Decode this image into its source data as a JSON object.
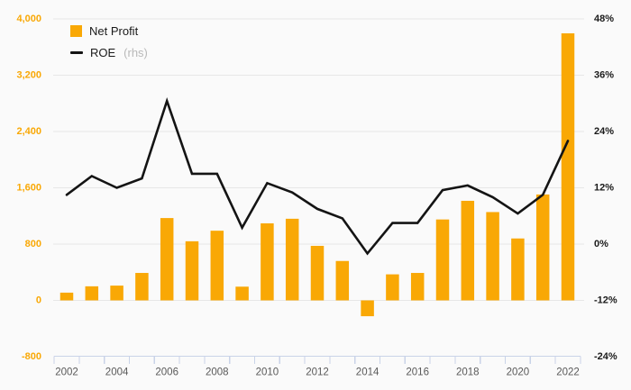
{
  "legend": {
    "net_profit_label": "Net Profit",
    "roe_label": "ROE",
    "roe_suffix": "(rhs)"
  },
  "colors": {
    "bar": "#F9A805",
    "line": "#141414",
    "left_axis_labels": "#F9A805",
    "right_axis_labels": "#1a1a1a",
    "x_axis_labels": "#595959",
    "gridline": "#e7e7e7",
    "axis_line": "#c9d3e8",
    "background": "#fafafa",
    "legend_muted": "#b9b9b9",
    "legend_text": "#1a1a1a"
  },
  "chart_data": {
    "type": "bar",
    "title": "",
    "categories": [
      "2002",
      "2003",
      "2004",
      "2005",
      "2006",
      "2007",
      "2008",
      "2009",
      "2010",
      "2011",
      "2012",
      "2013",
      "2014",
      "2015",
      "2016",
      "2017",
      "2018",
      "2019",
      "2020",
      "2021",
      "2022"
    ],
    "series": [
      {
        "name": "Net Profit",
        "type": "bar",
        "axis": "left",
        "values": [
          110,
          200,
          210,
          390,
          1170,
          840,
          990,
          195,
          1095,
          1160,
          775,
          560,
          -225,
          370,
          390,
          1150,
          1415,
          1255,
          880,
          1505,
          3795
        ]
      },
      {
        "name": "ROE",
        "type": "line",
        "axis": "right",
        "unit": "%",
        "values": [
          10.5,
          14.5,
          12,
          14,
          30.5,
          15,
          15,
          3.5,
          13,
          11,
          7.5,
          5.5,
          -2,
          4.5,
          4.5,
          11.5,
          12.5,
          10,
          6.5,
          10.5,
          22
        ]
      }
    ],
    "left_axis": {
      "min": -800,
      "max": 4000,
      "tick_step": 800,
      "tick_values": [
        4000,
        3200,
        2400,
        1600,
        800,
        0,
        -800
      ],
      "tick_labels": [
        "4,000",
        "3,200",
        "2,400",
        "1,600",
        "800",
        "0",
        "-800"
      ]
    },
    "right_axis": {
      "min": -24,
      "max": 48,
      "tick_step": 12,
      "tick_values": [
        48,
        36,
        24,
        12,
        0,
        -12,
        -24
      ],
      "tick_labels": [
        "48%",
        "36%",
        "24%",
        "12%",
        "0%",
        "-12%",
        "-24%"
      ]
    },
    "x_axis": {
      "labeled_years": [
        "2002",
        "2004",
        "2006",
        "2008",
        "2010",
        "2012",
        "2014",
        "2016",
        "2018",
        "2020",
        "2022"
      ],
      "label_every": 2
    },
    "legend_position": "top-left",
    "grid": "horizontal-only"
  }
}
